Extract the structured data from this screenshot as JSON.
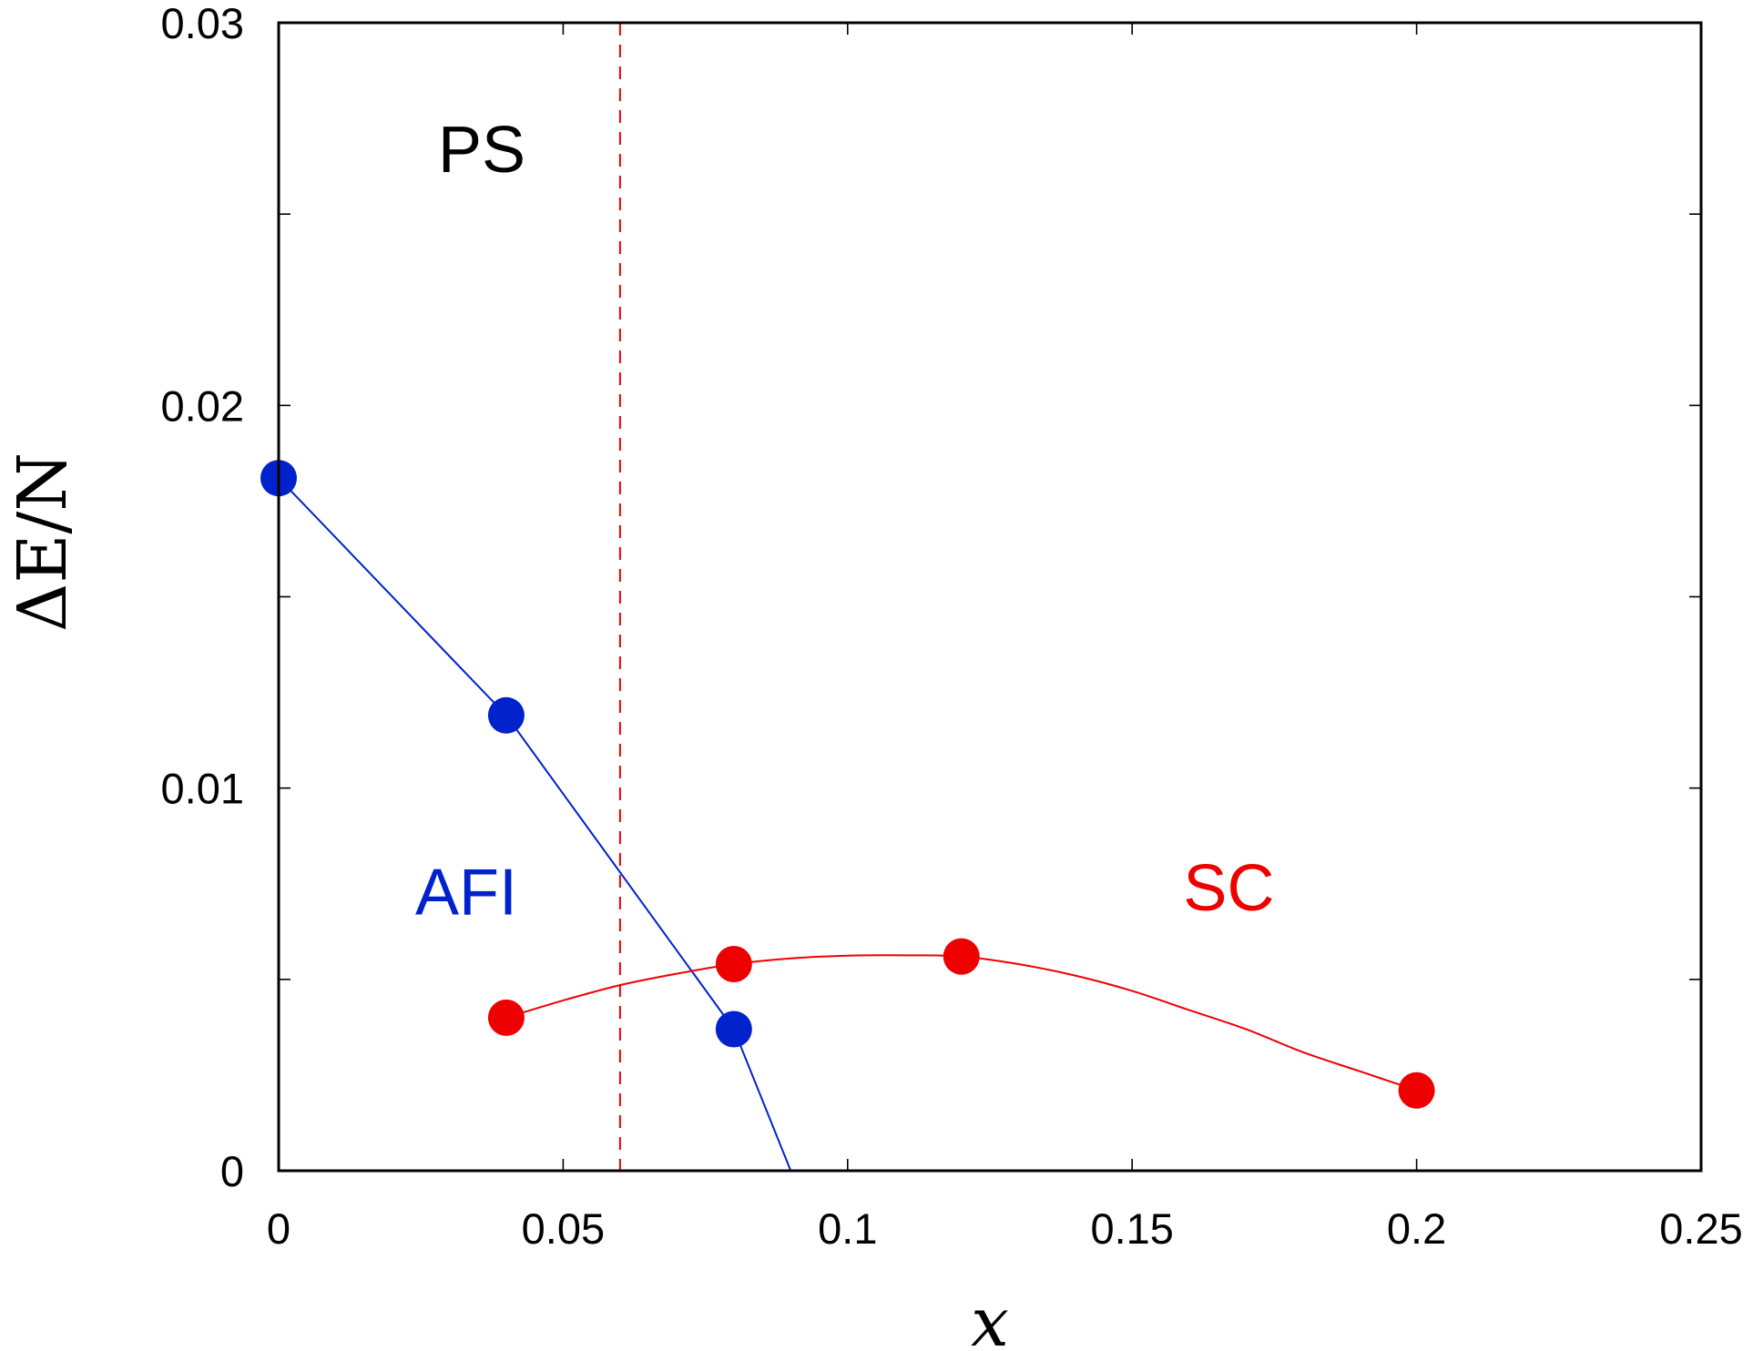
{
  "chart_data": {
    "type": "scatter",
    "title": "",
    "xlabel": "x",
    "ylabel": "ΔE/N",
    "xlim": [
      0,
      0.25
    ],
    "ylim": [
      0,
      0.03
    ],
    "xticks": [
      0,
      0.05,
      0.1,
      0.15,
      0.2,
      0.25
    ],
    "xtick_labels": [
      "0",
      "0.05",
      "0.1",
      "0.15",
      "0.2",
      "0.25"
    ],
    "yticks": [
      0,
      0.01,
      0.02,
      0.03
    ],
    "ytick_labels": [
      "0",
      "0.01",
      "0.02",
      "0.03"
    ],
    "grid": false,
    "series": [
      {
        "color": "#0022cc",
        "marker": "circle",
        "line": "straight",
        "points": [
          {
            "x": 0,
            "y": 0.0181
          },
          {
            "x": 0.04,
            "y": 0.0119
          },
          {
            "x": 0.08,
            "y": 0.0037
          }
        ],
        "line_extends_to": {
          "x": 0.09,
          "y": 0
        }
      },
      {
        "color": "#ee0000",
        "marker": "circle",
        "line": "smooth",
        "points": [
          {
            "x": 0.04,
            "y": 0.004
          },
          {
            "x": 0.08,
            "y": 0.0054
          },
          {
            "x": 0.12,
            "y": 0.0056
          },
          {
            "x": 0.2,
            "y": 0.0021
          }
        ],
        "curve": [
          {
            "x": 0.04,
            "y": 0.004
          },
          {
            "x": 0.05,
            "y": 0.00445
          },
          {
            "x": 0.06,
            "y": 0.00485
          },
          {
            "x": 0.07,
            "y": 0.00515
          },
          {
            "x": 0.08,
            "y": 0.0054
          },
          {
            "x": 0.09,
            "y": 0.00555
          },
          {
            "x": 0.1,
            "y": 0.00562
          },
          {
            "x": 0.11,
            "y": 0.00563
          },
          {
            "x": 0.12,
            "y": 0.0056
          },
          {
            "x": 0.13,
            "y": 0.0054
          },
          {
            "x": 0.14,
            "y": 0.0051
          },
          {
            "x": 0.15,
            "y": 0.0047
          },
          {
            "x": 0.16,
            "y": 0.0042
          },
          {
            "x": 0.17,
            "y": 0.0037
          },
          {
            "x": 0.18,
            "y": 0.0031
          },
          {
            "x": 0.19,
            "y": 0.0026
          },
          {
            "x": 0.2,
            "y": 0.0021
          }
        ]
      }
    ],
    "reference_lines": [
      {
        "orientation": "vertical",
        "x": 0.06,
        "color": "#ee0000",
        "style": "dashed"
      }
    ],
    "annotations": [
      {
        "text": "PS",
        "x": 0.028,
        "y": 0.0261,
        "color": "#000000"
      },
      {
        "text": "AFI",
        "x": 0.024,
        "y": 0.0067,
        "color": "#0022cc"
      },
      {
        "text": "SC",
        "x": 0.159,
        "y": 0.0068,
        "color": "#ee0000"
      }
    ]
  }
}
